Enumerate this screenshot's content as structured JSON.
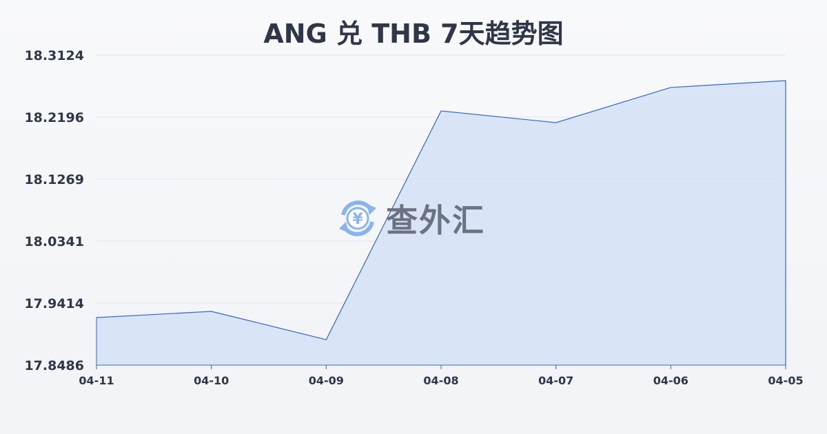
{
  "chart_data": {
    "type": "area",
    "title": "ANG 兑 THB 7天趋势图",
    "xlabel": "",
    "ylabel": "",
    "categories": [
      "04-11",
      "04-10",
      "04-09",
      "04-08",
      "04-07",
      "04-06",
      "04-05"
    ],
    "values": [
      17.9197,
      17.929,
      17.8867,
      18.2289,
      18.2114,
      18.264,
      18.2743
    ],
    "yticks": [
      "18.3124",
      "18.2196",
      "18.1269",
      "18.0341",
      "17.9414",
      "17.8486"
    ],
    "ylim": [
      17.8486,
      18.3124
    ],
    "grid": true,
    "colors": {
      "line": "#3366cc",
      "fill": "#d6e2f6",
      "grid": "#e2e5ea"
    }
  },
  "watermark": {
    "text": "查外汇",
    "icon": "yen-exchange-icon",
    "color": "#8ab4f0"
  }
}
